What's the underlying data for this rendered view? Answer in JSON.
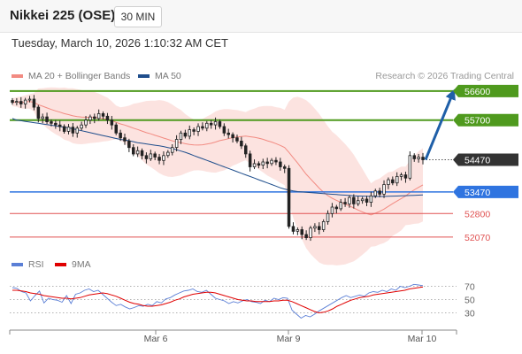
{
  "header": {
    "title": "Nikkei 225 (OSE)",
    "timeframe": "30 MIN"
  },
  "datetime": "Tuesday, March 10, 2026 1:10:32 AM CET",
  "legend": {
    "bollinger_label": "MA 20 + Bollinger Bands",
    "ma50_label": "MA 50",
    "bollinger_color": "#f28b82",
    "ma50_color": "#1f4e8c"
  },
  "copyright": "Research © 2026 Trading Central",
  "rsi_legend": {
    "rsi_label": "RSI",
    "ma_label": "9MA",
    "rsi_color": "#5b7fd6",
    "ma_color": "#e00000"
  },
  "chart_data": {
    "type": "candlestick",
    "instrument": "Nikkei 225 (OSE)",
    "interval": "30 MIN",
    "price_range": [
      51600,
      56900
    ],
    "levels": [
      {
        "label": "56600",
        "value": 56600,
        "kind": "resistance",
        "color": "#4f9a1e"
      },
      {
        "label": "55700",
        "value": 55700,
        "kind": "resistance",
        "color": "#4f9a1e"
      },
      {
        "label": "54470",
        "value": 54470,
        "kind": "last-price",
        "color": "#333333"
      },
      {
        "label": "53470",
        "value": 53470,
        "kind": "pivot",
        "color": "#2f74e0"
      },
      {
        "label": "52800",
        "value": 52800,
        "kind": "support",
        "color": "#e05252"
      },
      {
        "label": "52070",
        "value": 52070,
        "kind": "support",
        "color": "#e05252"
      }
    ],
    "target_arrow": {
      "from": 54470,
      "to": 56600
    },
    "x_ticks": [
      "Mar 6",
      "Mar 9",
      "Mar 10"
    ],
    "candles_close": [
      56250,
      56280,
      56200,
      56320,
      56350,
      56100,
      55750,
      55800,
      55650,
      55600,
      55550,
      55500,
      55350,
      55480,
      55300,
      55450,
      55550,
      55700,
      55800,
      55750,
      55900,
      55820,
      55700,
      55550,
      55300,
      55150,
      55050,
      54850,
      54650,
      54750,
      54600,
      54500,
      54650,
      54550,
      54450,
      54600,
      54700,
      54850,
      55100,
      55300,
      55200,
      55400,
      55350,
      55500,
      55450,
      55600,
      55550,
      55650,
      55500,
      55300,
      55250,
      55150,
      55050,
      54900,
      54650,
      54250,
      54350,
      54300,
      54400,
      54350,
      54450,
      54400,
      54250,
      54200,
      52400,
      52250,
      52300,
      52150,
      52050,
      52350,
      52400,
      52300,
      52550,
      52800,
      53000,
      52950,
      53150,
      53100,
      53300,
      53100,
      53200,
      53250,
      53150,
      53350,
      53500,
      53400,
      53700,
      53850,
      53750,
      53950,
      54000,
      53900,
      54600,
      54500,
      54550,
      54470
    ],
    "ma50": [
      55750,
      55700,
      55680,
      55660,
      55640,
      55620,
      55600,
      55580,
      55560,
      55540,
      55520,
      55500,
      55480,
      55460,
      55430,
      55400,
      55370,
      55340,
      55310,
      55280,
      55250,
      55220,
      55190,
      55160,
      55130,
      55100,
      55080,
      55060,
      55030,
      55000,
      54980,
      54960,
      54940,
      54920,
      54900,
      54880,
      54850,
      54820,
      54780,
      54740,
      54700,
      54650,
      54600,
      54550,
      54500,
      54450,
      54400,
      54350,
      54300,
      54250,
      54200,
      54150,
      54100,
      54050,
      54000,
      53950,
      53900,
      53850,
      53800,
      53750,
      53700,
      53650,
      53600,
      53560,
      53530,
      53500,
      53480,
      53470,
      53460,
      53450,
      53440,
      53430,
      53420,
      53410,
      53400,
      53390,
      53380,
      53370,
      53360,
      53350,
      53345,
      53340,
      53335,
      53330,
      53330,
      53330,
      53330,
      53335,
      53340,
      53345,
      53350,
      53355,
      53360,
      53365,
      53370,
      53380
    ],
    "rsi": [
      68,
      67,
      62,
      60,
      48,
      56,
      63,
      45,
      52,
      50,
      49,
      46,
      56,
      44,
      58,
      60,
      64,
      66,
      62,
      64,
      58,
      52,
      46,
      41,
      43,
      39,
      36,
      38,
      41,
      40,
      43,
      41,
      47,
      45,
      51,
      53,
      57,
      60,
      63,
      64,
      66,
      62,
      61,
      64,
      58,
      52,
      50,
      48,
      44,
      47,
      45,
      48,
      50,
      47,
      46,
      44,
      49,
      47,
      52,
      50,
      53,
      52,
      34,
      28,
      22,
      26,
      24,
      28,
      33,
      37,
      41,
      45,
      49,
      53,
      56,
      53,
      55,
      57,
      55,
      60,
      62,
      61,
      64,
      62,
      66,
      64,
      70,
      68,
      70,
      73,
      72,
      71
    ],
    "rsi_ma": [
      64,
      64,
      63,
      62,
      60,
      59,
      58,
      56,
      55,
      54,
      53,
      52,
      52,
      51,
      52,
      53,
      55,
      57,
      58,
      59,
      60,
      59,
      57,
      55,
      52,
      49,
      46,
      44,
      43,
      41,
      40,
      40,
      41,
      42,
      44,
      46,
      49,
      51,
      54,
      56,
      58,
      59,
      60,
      61,
      61,
      60,
      58,
      56,
      54,
      52,
      50,
      49,
      48,
      48,
      47,
      47,
      47,
      47,
      48,
      48,
      49,
      49,
      47,
      44,
      41,
      38,
      35,
      32,
      30,
      31,
      33,
      36,
      40,
      43,
      46,
      49,
      51,
      53,
      54,
      55,
      57,
      58,
      59,
      60,
      61,
      62,
      63,
      64,
      66,
      67,
      68,
      69
    ],
    "rsi_ticks": [
      70,
      50,
      30
    ]
  }
}
